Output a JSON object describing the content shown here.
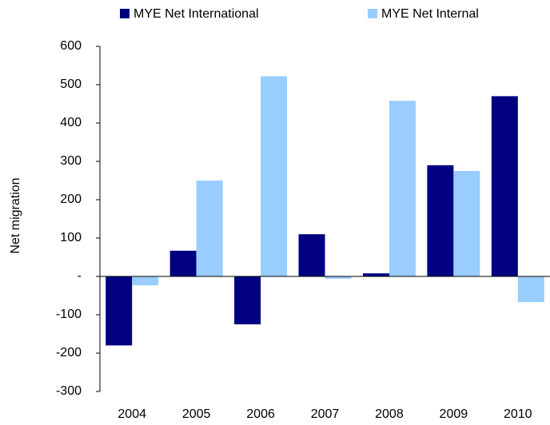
{
  "chart_data": {
    "type": "bar",
    "y_label": "Net migration",
    "categories": [
      "2004",
      "2005",
      "2006",
      "2007",
      "2008",
      "2009",
      "2010"
    ],
    "series": [
      {
        "name": "MYE Net International",
        "color": "#000080",
        "values": [
          -180,
          67,
          -125,
          110,
          8,
          290,
          470
        ]
      },
      {
        "name": "MYE Net Internal",
        "color": "#99ccff",
        "values": [
          -23,
          250,
          522,
          -6,
          458,
          275,
          -67
        ]
      }
    ],
    "ylim": [
      -300,
      600
    ],
    "yticks": [
      -300,
      -200,
      -100,
      {
        "value": 0,
        "label": "-"
      },
      100,
      200,
      300,
      400,
      500,
      600
    ],
    "grid": false,
    "legend": "top"
  }
}
